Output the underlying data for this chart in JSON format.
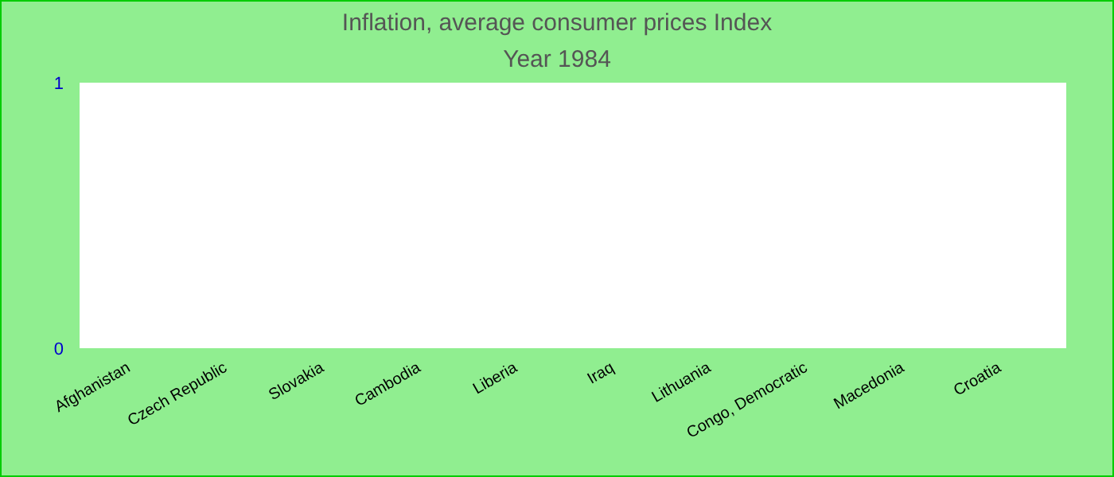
{
  "chart_data": {
    "type": "bar",
    "title": "Inflation, average consumer prices  Index",
    "subtitle": "Year 1984",
    "categories": [
      "Afghanistan",
      "Czech Republic",
      "Slovakia",
      "Cambodia",
      "Liberia",
      "Iraq",
      "Lithuania",
      "Congo, Democratic",
      "Macedonia",
      "Croatia"
    ],
    "values": [
      0,
      0,
      0,
      0,
      0,
      0,
      0,
      0,
      0,
      0
    ],
    "ylim": [
      0,
      1
    ],
    "yticks": [
      0,
      1
    ]
  }
}
